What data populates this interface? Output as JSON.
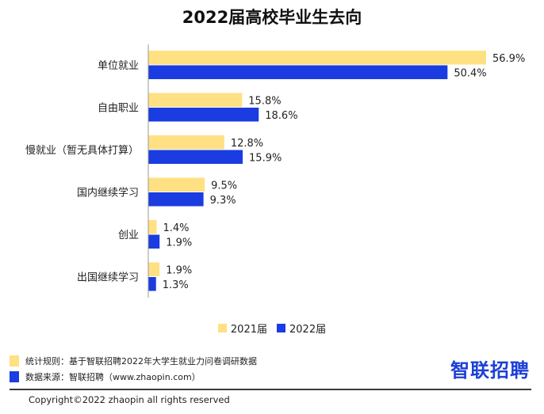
{
  "colors": {
    "series_2021": "#FFE082",
    "series_2022": "#1A3CE0",
    "axis": "#999999",
    "brand": "#1c3fd6"
  },
  "chart_data": {
    "type": "bar",
    "orientation": "horizontal",
    "title": "2022届高校毕业生去向",
    "categories": [
      "单位就业",
      "自由职业",
      "慢就业（暂无具体打算）",
      "国内继续学习",
      "创业",
      "出国继续学习"
    ],
    "series": [
      {
        "name": "2021届",
        "values": [
          56.9,
          15.8,
          12.8,
          9.5,
          1.4,
          1.9
        ],
        "labels": [
          "56.9%",
          "15.8%",
          "12.8%",
          "9.5%",
          "1.4%",
          "1.9%"
        ]
      },
      {
        "name": "2022届",
        "values": [
          50.4,
          18.6,
          15.9,
          9.3,
          1.9,
          1.3
        ],
        "labels": [
          "50.4%",
          "18.6%",
          "15.9%",
          "9.3%",
          "1.9%",
          "1.3%"
        ]
      }
    ],
    "xlim": [
      0,
      58
    ],
    "legend_position": "bottom",
    "grid": false
  },
  "footer": {
    "rule": "统计规则：基于智联招聘2022年大学生就业力问卷调研数据",
    "source": "数据来源：智联招聘（www.zhaopin.com）",
    "brand": "智联招聘",
    "copyright": "Copyright©2022 zhaopin all rights reserved"
  }
}
